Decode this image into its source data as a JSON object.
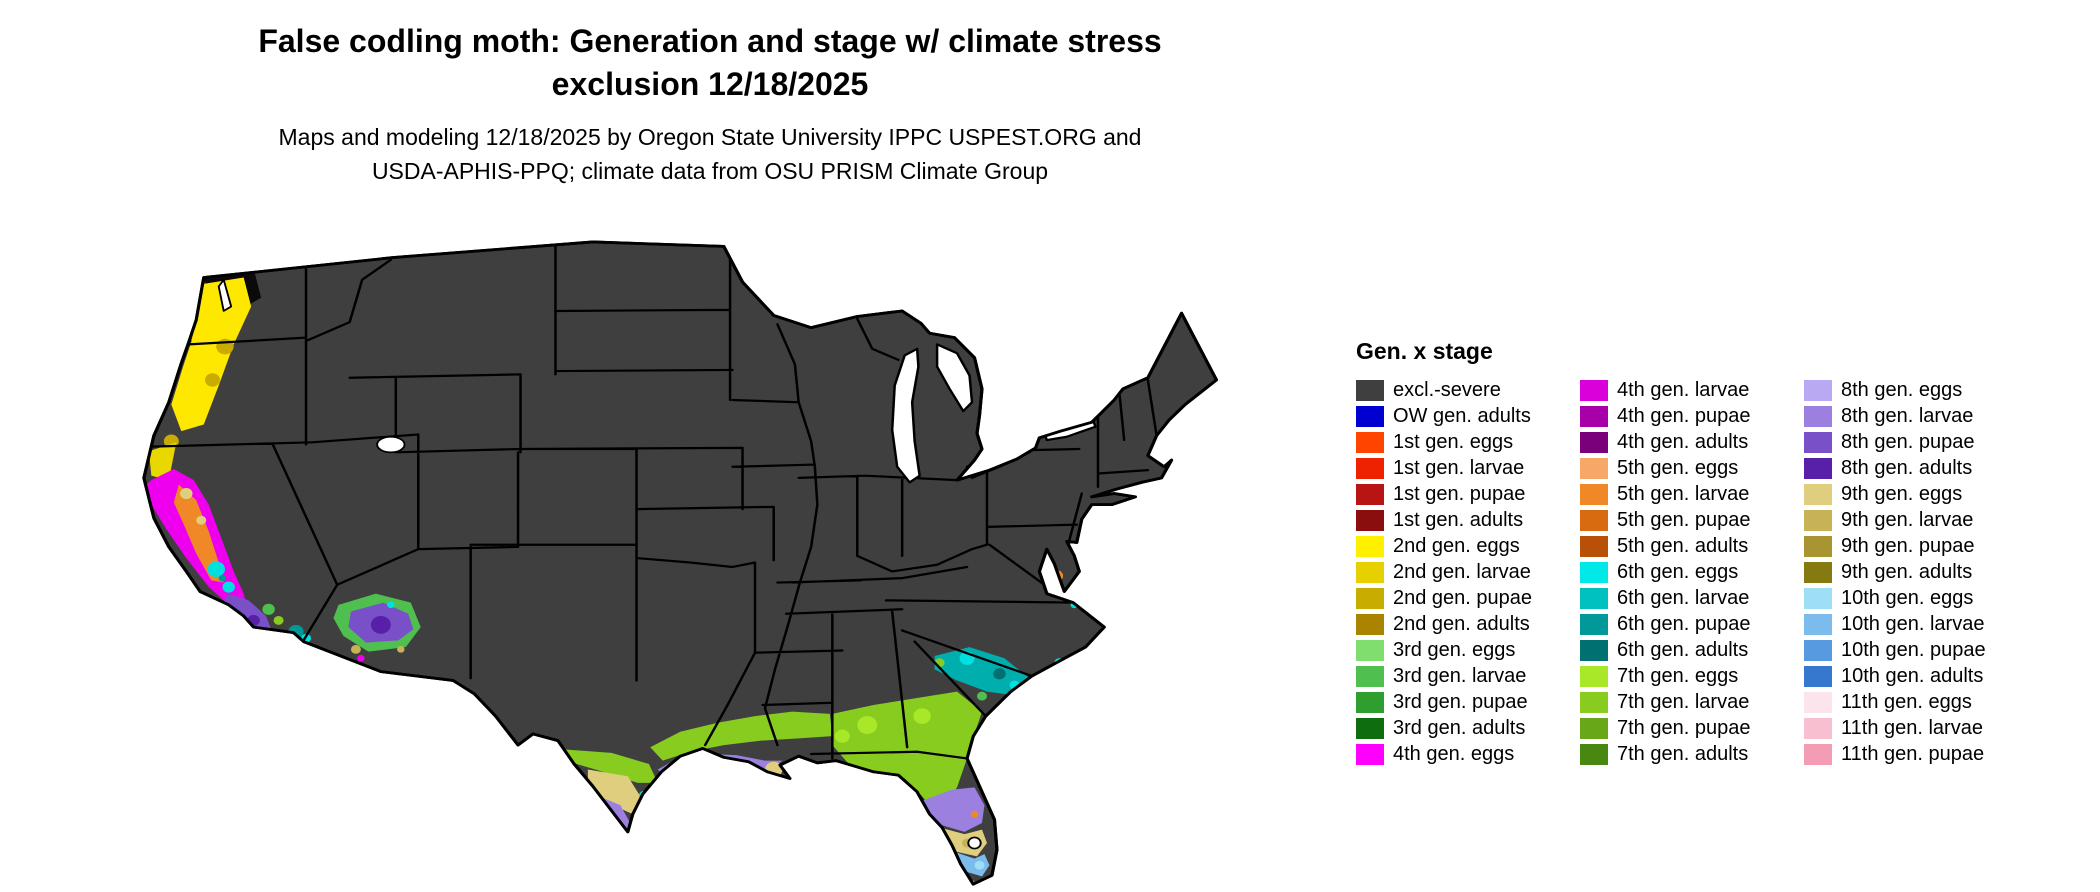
{
  "title": {
    "line1": "False codling moth: Generation and stage w/ climate stress",
    "line2": "exclusion 12/18/2025"
  },
  "subtitle": {
    "line1": "Maps and modeling 12/18/2025 by Oregon State University IPPC USPEST.ORG and",
    "line2": "USDA-APHIS-PPQ; climate data from OSU PRISM Climate Group"
  },
  "map": {
    "base_color": "#3F3F3F",
    "outline_color": "#000000",
    "lake_color": "#FFFFFF",
    "background": "#FFFFFF"
  },
  "legend": {
    "title": "Gen. x stage",
    "columns": [
      [
        {
          "label": "excl.-severe",
          "color": "#3F3F3F"
        },
        {
          "label": "OW gen. adults",
          "color": "#0000D0"
        },
        {
          "label": "1st gen. eggs",
          "color": "#FF4400"
        },
        {
          "label": "1st gen. larvae",
          "color": "#EE2200"
        },
        {
          "label": "1st gen. pupae",
          "color": "#B81414"
        },
        {
          "label": "1st gen. adults",
          "color": "#8B0E0E"
        },
        {
          "label": "2nd gen. eggs",
          "color": "#FFF000"
        },
        {
          "label": "2nd gen. larvae",
          "color": "#E6D000"
        },
        {
          "label": "2nd gen. pupae",
          "color": "#C8AC00"
        },
        {
          "label": "2nd gen. adults",
          "color": "#AA8400"
        },
        {
          "label": "3rd gen. eggs",
          "color": "#7FDE6E"
        },
        {
          "label": "3rd gen. larvae",
          "color": "#4FBF4F"
        },
        {
          "label": "3rd gen. pupae",
          "color": "#2E9E2E"
        },
        {
          "label": "3rd gen. adults",
          "color": "#0E6E0E"
        },
        {
          "label": "4th gen. eggs",
          "color": "#FF00FF"
        }
      ],
      [
        {
          "label": "4th gen. larvae",
          "color": "#D900D9"
        },
        {
          "label": "4th gen. pupae",
          "color": "#A800A8"
        },
        {
          "label": "4th gen. adults",
          "color": "#7A007A"
        },
        {
          "label": "5th gen. eggs",
          "color": "#F7A868"
        },
        {
          "label": "5th gen. larvae",
          "color": "#F08828"
        },
        {
          "label": "5th gen. pupae",
          "color": "#D86A10"
        },
        {
          "label": "5th gen. adults",
          "color": "#B85008"
        },
        {
          "label": "6th gen. eggs",
          "color": "#00E8E8"
        },
        {
          "label": "6th gen. larvae",
          "color": "#00C0C0"
        },
        {
          "label": "6th gen. pupae",
          "color": "#009898"
        },
        {
          "label": "6th gen. adults",
          "color": "#007070"
        },
        {
          "label": "7th gen. eggs",
          "color": "#A8E828"
        },
        {
          "label": "7th gen. larvae",
          "color": "#88CC20"
        },
        {
          "label": "7th gen. pupae",
          "color": "#68A818"
        },
        {
          "label": "7th gen. adults",
          "color": "#488810"
        }
      ],
      [
        {
          "label": "8th gen. eggs",
          "color": "#B9A8F2"
        },
        {
          "label": "8th gen. larvae",
          "color": "#9B80E0"
        },
        {
          "label": "8th gen. pupae",
          "color": "#7A50C8"
        },
        {
          "label": "8th gen. adults",
          "color": "#5820A8"
        },
        {
          "label": "9th gen. eggs",
          "color": "#DFCE7E"
        },
        {
          "label": "9th gen. larvae",
          "color": "#C8B258"
        },
        {
          "label": "9th gen. pupae",
          "color": "#A89430"
        },
        {
          "label": "9th gen. adults",
          "color": "#857A10"
        },
        {
          "label": "10th gen. eggs",
          "color": "#9FDFF5"
        },
        {
          "label": "10th gen. larvae",
          "color": "#7CBCEC"
        },
        {
          "label": "10th gen. pupae",
          "color": "#579AE0"
        },
        {
          "label": "10th gen. adults",
          "color": "#3578CE"
        },
        {
          "label": "11th gen. eggs",
          "color": "#FCE4EC"
        },
        {
          "label": "11th gen. larvae",
          "color": "#F8BFD0"
        },
        {
          "label": "11th gen. pupae",
          "color": "#F49CB4"
        }
      ]
    ]
  }
}
